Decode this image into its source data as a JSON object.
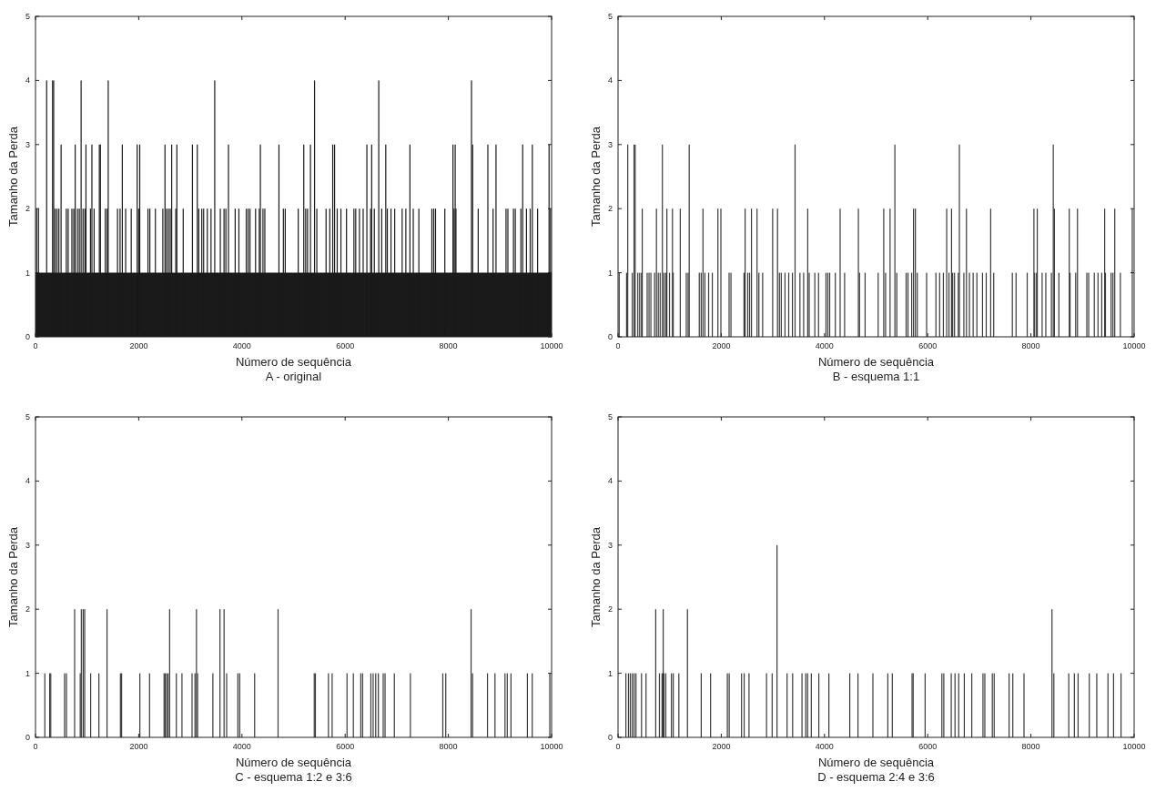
{
  "chart_data": [
    {
      "type": "bar",
      "xlabel": "Número de sequência",
      "ylabel": "Tamanho da Perda",
      "annotations": [
        "A - original"
      ],
      "xlim": [
        0,
        10000
      ],
      "xticks": [
        0,
        2000,
        4000,
        6000,
        8000,
        10000
      ],
      "ylim": [
        0,
        5
      ],
      "yticks": [
        0,
        1,
        2,
        3,
        4,
        5
      ],
      "series": [
        {
          "type": "area",
          "color": "#1a1a1a",
          "x": [
            0,
            10000
          ],
          "values": [
            1,
            1
          ]
        },
        {
          "color": "#1a1a1a",
          "x": [
            22,
            58,
            216,
            331,
            352,
            381,
            417,
            453,
            496,
            597,
            633,
            705,
            741,
            769,
            813,
            849,
            884,
            921,
            957,
            978,
            1065,
            1093,
            1136,
            1237,
            1258,
            1352,
            1388,
            1409,
            1589,
            1639,
            1682,
            1747,
            1855,
            1970,
            1999,
            2020,
            2179,
            2215,
            2323,
            2467,
            2509,
            2539,
            2575,
            2610,
            2639,
            2718,
            2739,
            2862,
            3041,
            3135,
            3164,
            3222,
            3258,
            3329,
            3401,
            3473,
            3581,
            3653,
            3689,
            3739,
            3869,
            3941,
            4084,
            4120,
            4156,
            4264,
            4336,
            4357,
            4408,
            4444,
            4717,
            4803,
            4839,
            5091,
            5198,
            5235,
            5271,
            5328,
            5407,
            5451,
            5630,
            5702,
            5759,
            5795,
            5846,
            5918,
            6026,
            6170,
            6205,
            6277,
            6349,
            6421,
            6493,
            6514,
            6565,
            6651,
            6709,
            6787,
            6817,
            6888,
            6960,
            7104,
            7176,
            7255,
            7320,
            7428,
            7680,
            7716,
            7751,
            7931,
            8089,
            8111,
            8132,
            8147,
            8448,
            8470,
            8578,
            8765,
            8866,
            8923,
            9117,
            9153,
            9261,
            9297,
            9405,
            9440,
            9513,
            9585,
            9627,
            9729,
            9951,
            9980
          ],
          "values": [
            2,
            2,
            4,
            4,
            4,
            2,
            2,
            2,
            3,
            2,
            2,
            2,
            2,
            3,
            2,
            2,
            4,
            2,
            2,
            3,
            2,
            3,
            2,
            3,
            3,
            2,
            2,
            4,
            2,
            2,
            3,
            2,
            2,
            3,
            2,
            3,
            2,
            2,
            2,
            2,
            3,
            2,
            2,
            2,
            3,
            2,
            3,
            2,
            3,
            3,
            2,
            2,
            2,
            2,
            2,
            4,
            2,
            2,
            2,
            3,
            2,
            2,
            2,
            2,
            2,
            2,
            2,
            3,
            2,
            2,
            3,
            2,
            2,
            2,
            3,
            2,
            2,
            3,
            4,
            2,
            2,
            2,
            3,
            3,
            2,
            2,
            2,
            2,
            2,
            2,
            2,
            3,
            2,
            3,
            2,
            4,
            2,
            3,
            2,
            2,
            2,
            2,
            2,
            3,
            2,
            2,
            2,
            2,
            2,
            2,
            3,
            2,
            3,
            2,
            4,
            3,
            2,
            3,
            2,
            3,
            2,
            2,
            2,
            2,
            2,
            3,
            2,
            2,
            3,
            2,
            3,
            2
          ]
        }
      ]
    },
    {
      "type": "bar",
      "xlabel": "Número de sequência",
      "ylabel": "Tamanho da Perda",
      "annotations": [
        "B - esquema 1:1"
      ],
      "xlim": [
        0,
        10000
      ],
      "xticks": [
        0,
        2000,
        4000,
        6000,
        8000,
        10000
      ],
      "ylim": [
        0,
        5
      ],
      "yticks": [
        0,
        1,
        2,
        3,
        4,
        5
      ],
      "series": [
        {
          "color": "#3a3a3a",
          "x": [
            22,
            166,
            188,
            275,
            310,
            332,
            383,
            419,
            455,
            469,
            564,
            600,
            636,
            708,
            744,
            780,
            816,
            859,
            889,
            925,
            946,
            997,
            1054,
            1069,
            1206,
            1322,
            1358,
            1379,
            1574,
            1611,
            1646,
            1683,
            1755,
            1827,
            1935,
            1993,
            2152,
            2188,
            2441,
            2462,
            2513,
            2549,
            2585,
            2693,
            2729,
            2802,
            2996,
            3090,
            3127,
            3163,
            3235,
            3307,
            3379,
            3430,
            3524,
            3596,
            3675,
            3704,
            3813,
            3885,
            4029,
            4065,
            4101,
            4210,
            4303,
            4390,
            4657,
            4679,
            4787,
            5040,
            5148,
            5184,
            5271,
            5364,
            5401,
            5582,
            5618,
            5690,
            5725,
            5761,
            5798,
            5979,
            6159,
            6231,
            6304,
            6368,
            6412,
            6462,
            6484,
            6520,
            6592,
            6614,
            6701,
            6751,
            6809,
            6881,
            6953,
            7062,
            7134,
            7220,
            7279,
            7640,
            7712,
            7928,
            8058,
            8072,
            8109,
            8123,
            8217,
            8289,
            8397,
            8433,
            8455,
            8542,
            8743,
            8758,
            8867,
            8902,
            9083,
            9119,
            9228,
            9300,
            9372,
            9429,
            9444,
            9553,
            9589,
            9624,
            9733,
            9964
          ],
          "values": [
            1,
            1,
            3,
            1,
            3,
            3,
            1,
            1,
            1,
            2,
            1,
            1,
            1,
            1,
            2,
            1,
            1,
            3,
            1,
            1,
            2,
            1,
            2,
            1,
            2,
            1,
            1,
            3,
            1,
            1,
            2,
            1,
            1,
            1,
            2,
            2,
            1,
            1,
            1,
            2,
            1,
            1,
            2,
            2,
            1,
            1,
            2,
            2,
            1,
            1,
            1,
            1,
            1,
            3,
            1,
            1,
            2,
            1,
            1,
            1,
            1,
            1,
            1,
            1,
            2,
            1,
            2,
            1,
            1,
            1,
            2,
            1,
            2,
            3,
            1,
            1,
            1,
            1,
            2,
            2,
            1,
            1,
            1,
            1,
            1,
            2,
            1,
            2,
            1,
            1,
            1,
            3,
            1,
            2,
            1,
            1,
            1,
            1,
            1,
            2,
            1,
            1,
            1,
            1,
            2,
            1,
            1,
            2,
            1,
            1,
            1,
            3,
            2,
            1,
            2,
            1,
            1,
            2,
            1,
            1,
            1,
            1,
            1,
            2,
            1,
            1,
            1,
            2,
            1,
            2
          ]
        }
      ]
    },
    {
      "type": "bar",
      "xlabel": "Número de sequência",
      "ylabel": "Tamanho da Perda",
      "annotations": [
        "C - esquema 1:2 e 3:6"
      ],
      "xlim": [
        0,
        10000
      ],
      "xticks": [
        0,
        2000,
        4000,
        6000,
        8000,
        10000
      ],
      "ylim": [
        0,
        5
      ],
      "yticks": [
        0,
        1,
        2,
        3,
        4,
        5
      ],
      "series": [
        {
          "color": "#3a3a3a",
          "x": [
            181,
            275,
            296,
            563,
            600,
            758,
            867,
            888,
            924,
            953,
            1069,
            1228,
            1386,
            1646,
            1668,
            2022,
            2210,
            2491,
            2513,
            2542,
            2570,
            2599,
            2729,
            2838,
            3033,
            3090,
            3119,
            3141,
            3437,
            3574,
            3654,
            3704,
            3921,
            3957,
            4246,
            4700,
            5401,
            5423,
            5676,
            5748,
            6036,
            6159,
            6303,
            6339,
            6498,
            6542,
            6592,
            6643,
            6737,
            6773,
            6953,
            7264,
            7892,
            7949,
            8440,
            8469,
            8758,
            8903,
            9097,
            9141,
            9213,
            9531,
            9625,
            9965
          ],
          "values": [
            1,
            1,
            1,
            1,
            1,
            2,
            1,
            2,
            2,
            2,
            1,
            1,
            2,
            1,
            1,
            1,
            1,
            1,
            1,
            1,
            1,
            2,
            1,
            1,
            1,
            1,
            2,
            1,
            1,
            2,
            2,
            1,
            1,
            1,
            1,
            2,
            1,
            1,
            1,
            1,
            1,
            1,
            1,
            1,
            1,
            1,
            1,
            1,
            1,
            1,
            1,
            1,
            1,
            1,
            2,
            1,
            1,
            1,
            1,
            1,
            1,
            1,
            1,
            1
          ]
        }
      ]
    },
    {
      "type": "bar",
      "xlabel": "Número de sequência",
      "ylabel": "Tamanho da Perda",
      "annotations": [
        "D - esquema 2:4 e 3:6"
      ],
      "xlim": [
        0,
        10000
      ],
      "xticks": [
        0,
        2000,
        4000,
        6000,
        8000,
        10000
      ],
      "ylim": [
        0,
        5
      ],
      "yticks": [
        0,
        1,
        2,
        3,
        4,
        5
      ],
      "series": [
        {
          "color": "#3a3a3a",
          "x": [
            152,
            202,
            238,
            275,
            311,
            347,
            455,
            542,
            730,
            802,
            853,
            875,
            889,
            925,
            1034,
            1070,
            1178,
            1345,
            1612,
            1793,
            2118,
            2154,
            2393,
            2444,
            2538,
            2877,
            2986,
            3080,
            3275,
            3383,
            3564,
            3637,
            3673,
            3745,
            3890,
            4085,
            4490,
            4649,
            4938,
            5227,
            5314,
            5697,
            5719,
            5950,
            6275,
            6312,
            6456,
            6529,
            6601,
            6709,
            6854,
            7071,
            7107,
            7252,
            7288,
            7577,
            7649,
            7866,
            8408,
            8444,
            8733,
            8842,
            8914,
            9131,
            9276,
            9493,
            9601,
            9746
          ],
          "values": [
            1,
            1,
            1,
            1,
            1,
            1,
            1,
            1,
            2,
            1,
            1,
            2,
            1,
            1,
            1,
            1,
            1,
            2,
            1,
            1,
            1,
            1,
            1,
            1,
            1,
            1,
            1,
            3,
            1,
            1,
            1,
            1,
            1,
            1,
            1,
            1,
            1,
            1,
            1,
            1,
            1,
            1,
            1,
            1,
            1,
            1,
            1,
            1,
            1,
            1,
            1,
            1,
            1,
            1,
            1,
            1,
            1,
            1,
            2,
            1,
            1,
            1,
            1,
            1,
            1,
            1,
            1,
            1
          ]
        }
      ]
    }
  ]
}
